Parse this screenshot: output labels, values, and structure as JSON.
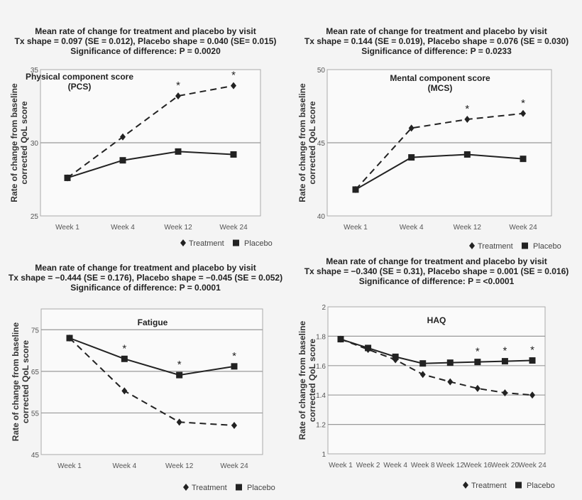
{
  "chart_data": [
    {
      "type": "line",
      "title": [
        "Mean rate of change for treatment and placebo by visit",
        "Tx shape = 0.097 (SE = 0.012), Placebo shape = 0.040 (SE= 0.015)",
        "Significance of difference: P = 0.0020"
      ],
      "panel_label": [
        "Physical component score",
        "(PCS)"
      ],
      "ylabel": [
        "Rate of change from baseline",
        "corrected QoL score"
      ],
      "categories": [
        "Week 1",
        "Week 4",
        "Week 12",
        "Week 24"
      ],
      "ylim": [
        25,
        35
      ],
      "yticks": [
        25,
        30,
        35
      ],
      "grid": "y",
      "series": [
        {
          "name": "Treatment",
          "marker": "diamond",
          "style": "dashed",
          "values": [
            27.6,
            30.4,
            33.2,
            33.9
          ]
        },
        {
          "name": "Placebo",
          "marker": "square",
          "style": "solid",
          "values": [
            27.6,
            28.8,
            29.4,
            29.2
          ]
        }
      ],
      "significant": [
        "Week 12",
        "Week 24"
      ],
      "legend": "bottom-right"
    },
    {
      "type": "line",
      "title": [
        "Mean rate of change for treatment and placebo by visit",
        "Tx shape = 0.144 (SE = 0.019), Placebo shape = 0.076 (SE = 0.030)",
        "Significance of difference: P = 0.0233"
      ],
      "panel_label": [
        "Mental component score",
        "(MCS)"
      ],
      "ylabel": [
        "Rate of change from baseline",
        "corrected QoL score"
      ],
      "categories": [
        "Week 1",
        "Week 4",
        "Week 12",
        "Week 24"
      ],
      "ylim": [
        40,
        50
      ],
      "yticks": [
        40,
        45,
        50
      ],
      "grid": "y",
      "series": [
        {
          "name": "Treatment",
          "marker": "diamond",
          "style": "dashed",
          "values": [
            41.8,
            46.0,
            46.6,
            47.0
          ]
        },
        {
          "name": "Placebo",
          "marker": "square",
          "style": "solid",
          "values": [
            41.8,
            44.0,
            44.2,
            43.9
          ]
        }
      ],
      "significant": [
        "Week 12",
        "Week 24"
      ],
      "legend": "bottom-right"
    },
    {
      "type": "line",
      "title": [
        "Mean rate of change for treatment and placebo by visit",
        "Tx shape = −0.444 (SE = 0.176), Placebo shape = −0.045 (SE = 0.052)",
        "Significance of difference: P = 0.0001"
      ],
      "panel_label": [
        "Fatigue"
      ],
      "ylabel": [
        "Rate of change from baseline",
        "corrected QoL score"
      ],
      "categories": [
        "Week 1",
        "Week 4",
        "Week 12",
        "Week 24"
      ],
      "ylim": [
        45,
        80
      ],
      "yticks": [
        45,
        55,
        65,
        75
      ],
      "grid": "y",
      "series": [
        {
          "name": "Treatment",
          "marker": "diamond",
          "style": "dashed",
          "values": [
            73.0,
            60.3,
            52.8,
            52.0
          ]
        },
        {
          "name": "Placebo",
          "marker": "square",
          "style": "solid",
          "values": [
            73.0,
            68.0,
            64.1,
            66.2
          ]
        }
      ],
      "significant": [
        "Week 4",
        "Week 12",
        "Week 24"
      ],
      "legend": "bottom-right"
    },
    {
      "type": "line",
      "title": [
        "Mean rate of change for treatment and placebo by visit",
        "Tx shape = −0.340 (SE = 0.31), Placebo shape = 0.001 (SE = 0.016)",
        "Significance of difference: P = <0.0001"
      ],
      "panel_label": [
        "HAQ"
      ],
      "ylabel": [
        "Rate of change from baseline",
        "corrected QoL score"
      ],
      "categories": [
        "Week 1",
        "Week 2",
        "Week 4",
        "Week 8",
        "Week 12",
        "Week 16",
        "Week 20",
        "Week 24"
      ],
      "ylim": [
        1,
        2
      ],
      "yticks": [
        1,
        1.2,
        1.4,
        1.6,
        1.8,
        2
      ],
      "grid": "y",
      "series": [
        {
          "name": "Treatment",
          "marker": "diamond",
          "style": "dashed",
          "values": [
            1.78,
            1.71,
            1.64,
            1.54,
            1.49,
            1.445,
            1.415,
            1.4
          ]
        },
        {
          "name": "Placebo",
          "marker": "square",
          "style": "solid",
          "values": [
            1.78,
            1.72,
            1.66,
            1.615,
            1.62,
            1.625,
            1.63,
            1.635
          ]
        }
      ],
      "significant": [
        "Week 16",
        "Week 20",
        "Week 24"
      ],
      "legend": "bottom-right"
    }
  ],
  "colors": {
    "treatment": "#222222",
    "placebo": "#222222",
    "grid": "#999999",
    "plot_bg": "#fafafa"
  }
}
